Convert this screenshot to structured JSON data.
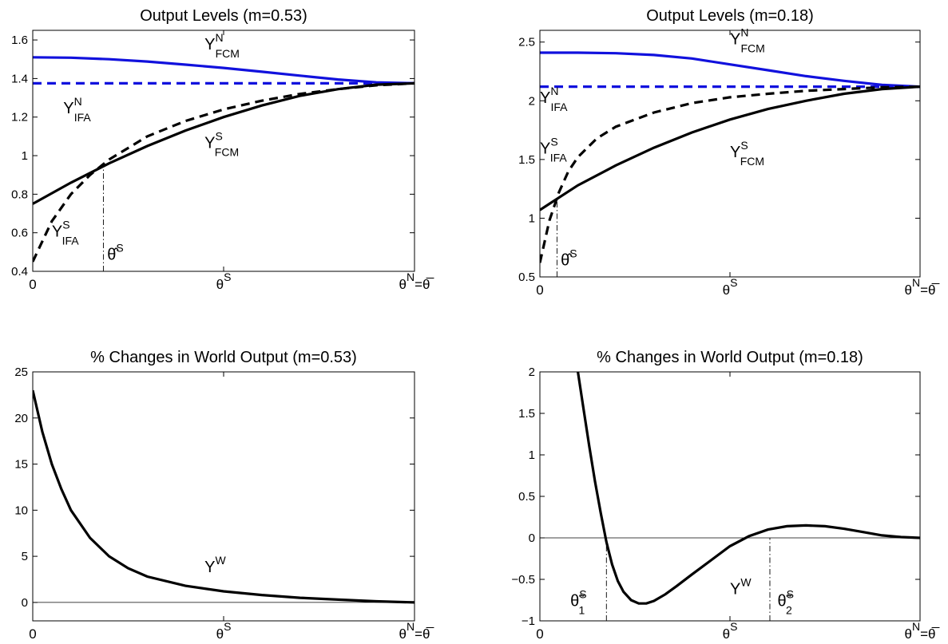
{
  "colors": {
    "north": "#1111dd",
    "south": "#000000",
    "axis": "#000000"
  },
  "chart_data": [
    {
      "type": "line",
      "title": "Output Levels (m=0.53)",
      "xlim": [
        0,
        1
      ],
      "ylim": [
        0.4,
        1.65
      ],
      "xticks": [
        {
          "x": 0,
          "label": "0"
        },
        {
          "x": 0.5,
          "label": "θ",
          "sup": "S"
        },
        {
          "x": 1,
          "label": "θ",
          "sup": "N",
          "suffix": "=θ̅"
        }
      ],
      "yticks": [
        {
          "v": 0.4,
          "label": "0.4"
        },
        {
          "v": 0.6,
          "label": "0.6"
        },
        {
          "v": 0.8,
          "label": "0.8"
        },
        {
          "v": 1,
          "label": "1"
        },
        {
          "v": 1.2,
          "label": "1.2"
        },
        {
          "v": 1.4,
          "label": "1.4"
        },
        {
          "v": 1.6,
          "label": "1.6"
        }
      ],
      "grid": false,
      "series": [
        {
          "key": "yn_fcm",
          "color": "#1111dd",
          "dash": "solid",
          "x": [
            0,
            0.1,
            0.2,
            0.3,
            0.4,
            0.5,
            0.6,
            0.7,
            0.8,
            0.9,
            1.0
          ],
          "y": [
            1.51,
            1.508,
            1.5,
            1.488,
            1.472,
            1.455,
            1.435,
            1.415,
            1.395,
            1.38,
            1.375
          ]
        },
        {
          "key": "yn_ifa",
          "color": "#1111dd",
          "dash": "dashed",
          "x": [
            0,
            1.0
          ],
          "y": [
            1.375,
            1.375
          ]
        },
        {
          "key": "ys_fcm",
          "color": "#000000",
          "dash": "solid",
          "x": [
            0,
            0.1,
            0.2,
            0.3,
            0.4,
            0.5,
            0.6,
            0.7,
            0.8,
            0.9,
            1.0
          ],
          "y": [
            0.75,
            0.86,
            0.96,
            1.05,
            1.13,
            1.2,
            1.26,
            1.31,
            1.345,
            1.368,
            1.375
          ]
        },
        {
          "key": "ys_ifa",
          "color": "#000000",
          "dash": "dashed",
          "x": [
            0,
            0.05,
            0.1,
            0.15,
            0.2,
            0.3,
            0.4,
            0.5,
            0.6,
            0.7,
            0.8,
            0.9,
            1.0
          ],
          "y": [
            0.45,
            0.66,
            0.8,
            0.9,
            0.98,
            1.1,
            1.18,
            1.24,
            1.285,
            1.32,
            1.345,
            1.365,
            1.375
          ]
        }
      ],
      "marker_line": {
        "x": 0.185,
        "y_top": 0.96
      },
      "annotations": [
        {
          "text": "Y",
          "sup": "N",
          "sub": "FCM",
          "x": 0.45,
          "y": 1.55
        },
        {
          "text": "Y",
          "sup": "N",
          "sub": "IFA",
          "x": 0.08,
          "y": 1.22
        },
        {
          "text": "Y",
          "sup": "S",
          "sub": "FCM",
          "x": 0.45,
          "y": 1.04
        },
        {
          "text": "Y",
          "sup": "S",
          "sub": "IFA",
          "x": 0.05,
          "y": 0.58
        },
        {
          "text": "θ̂",
          "sup": "S",
          "x": 0.195,
          "y": 0.46
        }
      ]
    },
    {
      "type": "line",
      "title": "Output Levels (m=0.18)",
      "xlim": [
        0,
        1
      ],
      "ylim": [
        0.5,
        2.6
      ],
      "xticks": [
        {
          "x": 0,
          "label": "0"
        },
        {
          "x": 0.5,
          "label": "θ",
          "sup": "S"
        },
        {
          "x": 1,
          "label": "θ",
          "sup": "N",
          "suffix": "=θ̅"
        }
      ],
      "yticks": [
        {
          "v": 0.5,
          "label": "0.5"
        },
        {
          "v": 1,
          "label": "1"
        },
        {
          "v": 1.5,
          "label": "1.5"
        },
        {
          "v": 2,
          "label": "2"
        },
        {
          "v": 2.5,
          "label": "2.5"
        }
      ],
      "grid": false,
      "series": [
        {
          "key": "yn_fcm",
          "color": "#1111dd",
          "dash": "solid",
          "x": [
            0,
            0.1,
            0.2,
            0.3,
            0.4,
            0.5,
            0.6,
            0.7,
            0.8,
            0.9,
            1.0
          ],
          "y": [
            2.41,
            2.41,
            2.405,
            2.39,
            2.36,
            2.31,
            2.26,
            2.21,
            2.17,
            2.135,
            2.12
          ]
        },
        {
          "key": "yn_ifa",
          "color": "#1111dd",
          "dash": "dashed",
          "x": [
            0,
            1.0
          ],
          "y": [
            2.12,
            2.12
          ]
        },
        {
          "key": "ys_fcm",
          "color": "#000000",
          "dash": "solid",
          "x": [
            0,
            0.1,
            0.2,
            0.3,
            0.4,
            0.5,
            0.6,
            0.7,
            0.8,
            0.9,
            1.0
          ],
          "y": [
            1.07,
            1.28,
            1.45,
            1.6,
            1.73,
            1.84,
            1.93,
            2.0,
            2.06,
            2.1,
            2.12
          ]
        },
        {
          "key": "ys_ifa",
          "color": "#000000",
          "dash": "dashed",
          "x": [
            0,
            0.025,
            0.05,
            0.075,
            0.1,
            0.15,
            0.2,
            0.3,
            0.4,
            0.5,
            0.6,
            0.7,
            0.8,
            0.9,
            1.0
          ],
          "y": [
            0.62,
            0.98,
            1.22,
            1.4,
            1.52,
            1.68,
            1.78,
            1.9,
            1.98,
            2.03,
            2.06,
            2.085,
            2.1,
            2.115,
            2.12
          ]
        }
      ],
      "marker_line": {
        "x": 0.045,
        "y_top": 1.15
      },
      "annotations": [
        {
          "text": "Y",
          "sup": "N",
          "sub": "FCM",
          "x": 0.5,
          "y": 2.48
        },
        {
          "text": "Y",
          "sup": "N",
          "sub": "IFA",
          "x": 0.0,
          "y": 1.98
        },
        {
          "text": "Y",
          "sup": "S",
          "sub": "IFA",
          "x": 0.0,
          "y": 1.55
        },
        {
          "text": "Y",
          "sup": "S",
          "sub": "FCM",
          "x": 0.5,
          "y": 1.52
        },
        {
          "text": "θ̂",
          "sup": "S",
          "x": 0.055,
          "y": 0.6
        }
      ]
    },
    {
      "type": "line",
      "title": "% Changes in World Output (m=0.53)",
      "xlim": [
        0,
        1
      ],
      "ylim": [
        -2,
        25
      ],
      "xticks": [
        {
          "x": 0,
          "label": "0"
        },
        {
          "x": 0.5,
          "label": "θ",
          "sup": "S"
        },
        {
          "x": 1,
          "label": "θ",
          "sup": "N",
          "suffix": "=θ̅"
        }
      ],
      "yticks": [
        {
          "v": 0,
          "label": "0"
        },
        {
          "v": 5,
          "label": "5"
        },
        {
          "v": 10,
          "label": "10"
        },
        {
          "v": 15,
          "label": "15"
        },
        {
          "v": 20,
          "label": "20"
        },
        {
          "v": 25,
          "label": "25"
        }
      ],
      "zero_line": true,
      "grid": false,
      "series": [
        {
          "key": "yw",
          "color": "#000000",
          "dash": "solid",
          "x": [
            0,
            0.025,
            0.05,
            0.075,
            0.1,
            0.15,
            0.2,
            0.25,
            0.3,
            0.4,
            0.5,
            0.6,
            0.7,
            0.8,
            0.9,
            1.0
          ],
          "y": [
            23.0,
            18.5,
            15.0,
            12.3,
            10.0,
            7.0,
            5.0,
            3.7,
            2.8,
            1.8,
            1.2,
            0.8,
            0.5,
            0.3,
            0.12,
            0.0
          ]
        }
      ],
      "annotations": [
        {
          "text": "Y",
          "sup": "W",
          "x": 0.45,
          "y": 3.3
        }
      ]
    },
    {
      "type": "line",
      "title": "% Changes in World Output (m=0.18)",
      "xlim": [
        0,
        1
      ],
      "ylim": [
        -1,
        2
      ],
      "xticks": [
        {
          "x": 0,
          "label": "0"
        },
        {
          "x": 0.5,
          "label": "θ",
          "sup": "S"
        },
        {
          "x": 1,
          "label": "θ",
          "sup": "N",
          "suffix": "=θ̅"
        }
      ],
      "yticks": [
        {
          "v": -1,
          "label": "−1"
        },
        {
          "v": -0.5,
          "label": "−0.5"
        },
        {
          "v": 0,
          "label": "0"
        },
        {
          "v": 0.5,
          "label": "0.5"
        },
        {
          "v": 1,
          "label": "1"
        },
        {
          "v": 1.5,
          "label": "1.5"
        },
        {
          "v": 2,
          "label": "2"
        }
      ],
      "zero_line": true,
      "grid": false,
      "series": [
        {
          "key": "yw",
          "color": "#000000",
          "dash": "solid",
          "x": [
            0.1,
            0.115,
            0.13,
            0.145,
            0.16,
            0.175,
            0.19,
            0.205,
            0.22,
            0.24,
            0.26,
            0.28,
            0.3,
            0.33,
            0.36,
            0.4,
            0.45,
            0.5,
            0.55,
            0.6,
            0.65,
            0.7,
            0.75,
            0.8,
            0.85,
            0.9,
            0.95,
            1.0
          ],
          "y": [
            2.0,
            1.55,
            1.1,
            0.68,
            0.3,
            -0.05,
            -0.32,
            -0.52,
            -0.65,
            -0.75,
            -0.79,
            -0.79,
            -0.76,
            -0.68,
            -0.58,
            -0.44,
            -0.27,
            -0.1,
            0.02,
            0.1,
            0.14,
            0.15,
            0.14,
            0.11,
            0.07,
            0.03,
            0.01,
            0.0
          ]
        }
      ],
      "marker_lines": [
        {
          "x": 0.175,
          "y_bottom": -1,
          "y_top": 0
        },
        {
          "x": 0.605,
          "y_bottom": -1,
          "y_top": 0
        }
      ],
      "annotations": [
        {
          "text": "Y",
          "sup": "W",
          "x": 0.5,
          "y": -0.68
        },
        {
          "text": "θ̃",
          "sup": "S",
          "sub": "1",
          "x": 0.08,
          "y": -0.82
        },
        {
          "text": "θ̃",
          "sup": "S",
          "sub": "2",
          "x": 0.625,
          "y": -0.82
        }
      ]
    }
  ]
}
